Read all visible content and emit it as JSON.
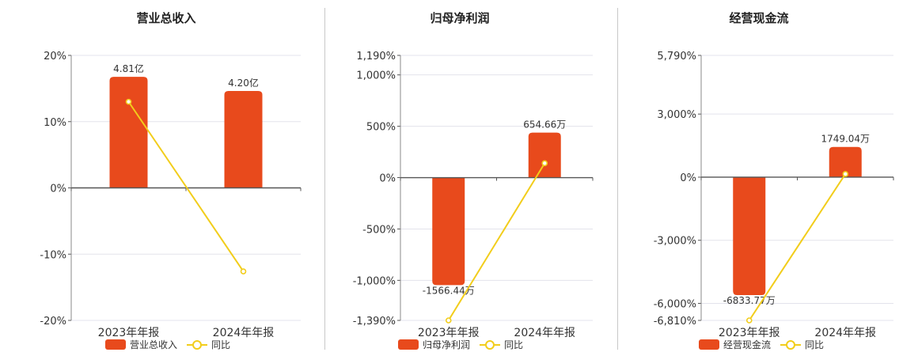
{
  "colors": {
    "bar": "#e84a1c",
    "line": "#f2cd1b",
    "axis": "#555555",
    "grid": "#e3e3ec"
  },
  "chart_data": [
    {
      "type": "bar",
      "title": "营业总收入",
      "categories": [
        "2023年年报",
        "2024年年报"
      ],
      "series": [
        {
          "name": "营业总收入",
          "type": "bar",
          "values": [
            4.81,
            4.2
          ],
          "labels": [
            "4.81亿",
            "4.20亿"
          ]
        },
        {
          "name": "同比",
          "type": "line",
          "axis": "right",
          "values": [
            13.0,
            -12.6
          ]
        }
      ],
      "bar_domain": [
        -5.74,
        5.74
      ],
      "ylim": [
        -20,
        20
      ],
      "yticks": [
        20,
        10,
        0,
        -10,
        -20
      ],
      "ytick_labels": [
        "20%",
        "10%",
        "0%",
        "-10%",
        "-20%"
      ],
      "legend": [
        "营业总收入",
        "同比"
      ]
    },
    {
      "type": "bar",
      "title": "归母净利润",
      "categories": [
        "2023年年报",
        "2024年年报"
      ],
      "series": [
        {
          "name": "归母净利润",
          "type": "bar",
          "values": [
            -1566.44,
            654.66
          ],
          "labels": [
            "-1566.44万",
            "654.66万"
          ]
        },
        {
          "name": "同比",
          "type": "line",
          "axis": "right",
          "values": [
            -1390,
            140
          ]
        }
      ],
      "bar_domain": [
        -2080,
        1780
      ],
      "ylim": [
        -1390,
        1190
      ],
      "yticks": [
        1190,
        1000,
        500,
        0,
        -500,
        -1000,
        -1390
      ],
      "ytick_labels": [
        "1,190%",
        "1,000%",
        "500%",
        "0%",
        "-500%",
        "-1,000%",
        "-1,390%"
      ],
      "legend": [
        "归母净利润",
        "同比"
      ]
    },
    {
      "type": "bar",
      "title": "经营现金流",
      "categories": [
        "2023年年报",
        "2024年年报"
      ],
      "series": [
        {
          "name": "经营现金流",
          "type": "bar",
          "values": [
            -6833.77,
            1749.04
          ],
          "labels": [
            "-6833.77万",
            "1749.04万"
          ]
        },
        {
          "name": "同比",
          "type": "line",
          "axis": "right",
          "values": [
            -6810,
            150
          ]
        }
      ],
      "bar_domain": [
        -8300,
        7050
      ],
      "ylim": [
        -6810,
        5790
      ],
      "yticks": [
        5790,
        3000,
        0,
        -3000,
        -6000,
        -6810
      ],
      "ytick_labels": [
        "5,790%",
        "3,000%",
        "0%",
        "-3,000%",
        "-6,000%",
        "-6,810%"
      ],
      "legend": [
        "经营现金流",
        "同比"
      ]
    }
  ]
}
